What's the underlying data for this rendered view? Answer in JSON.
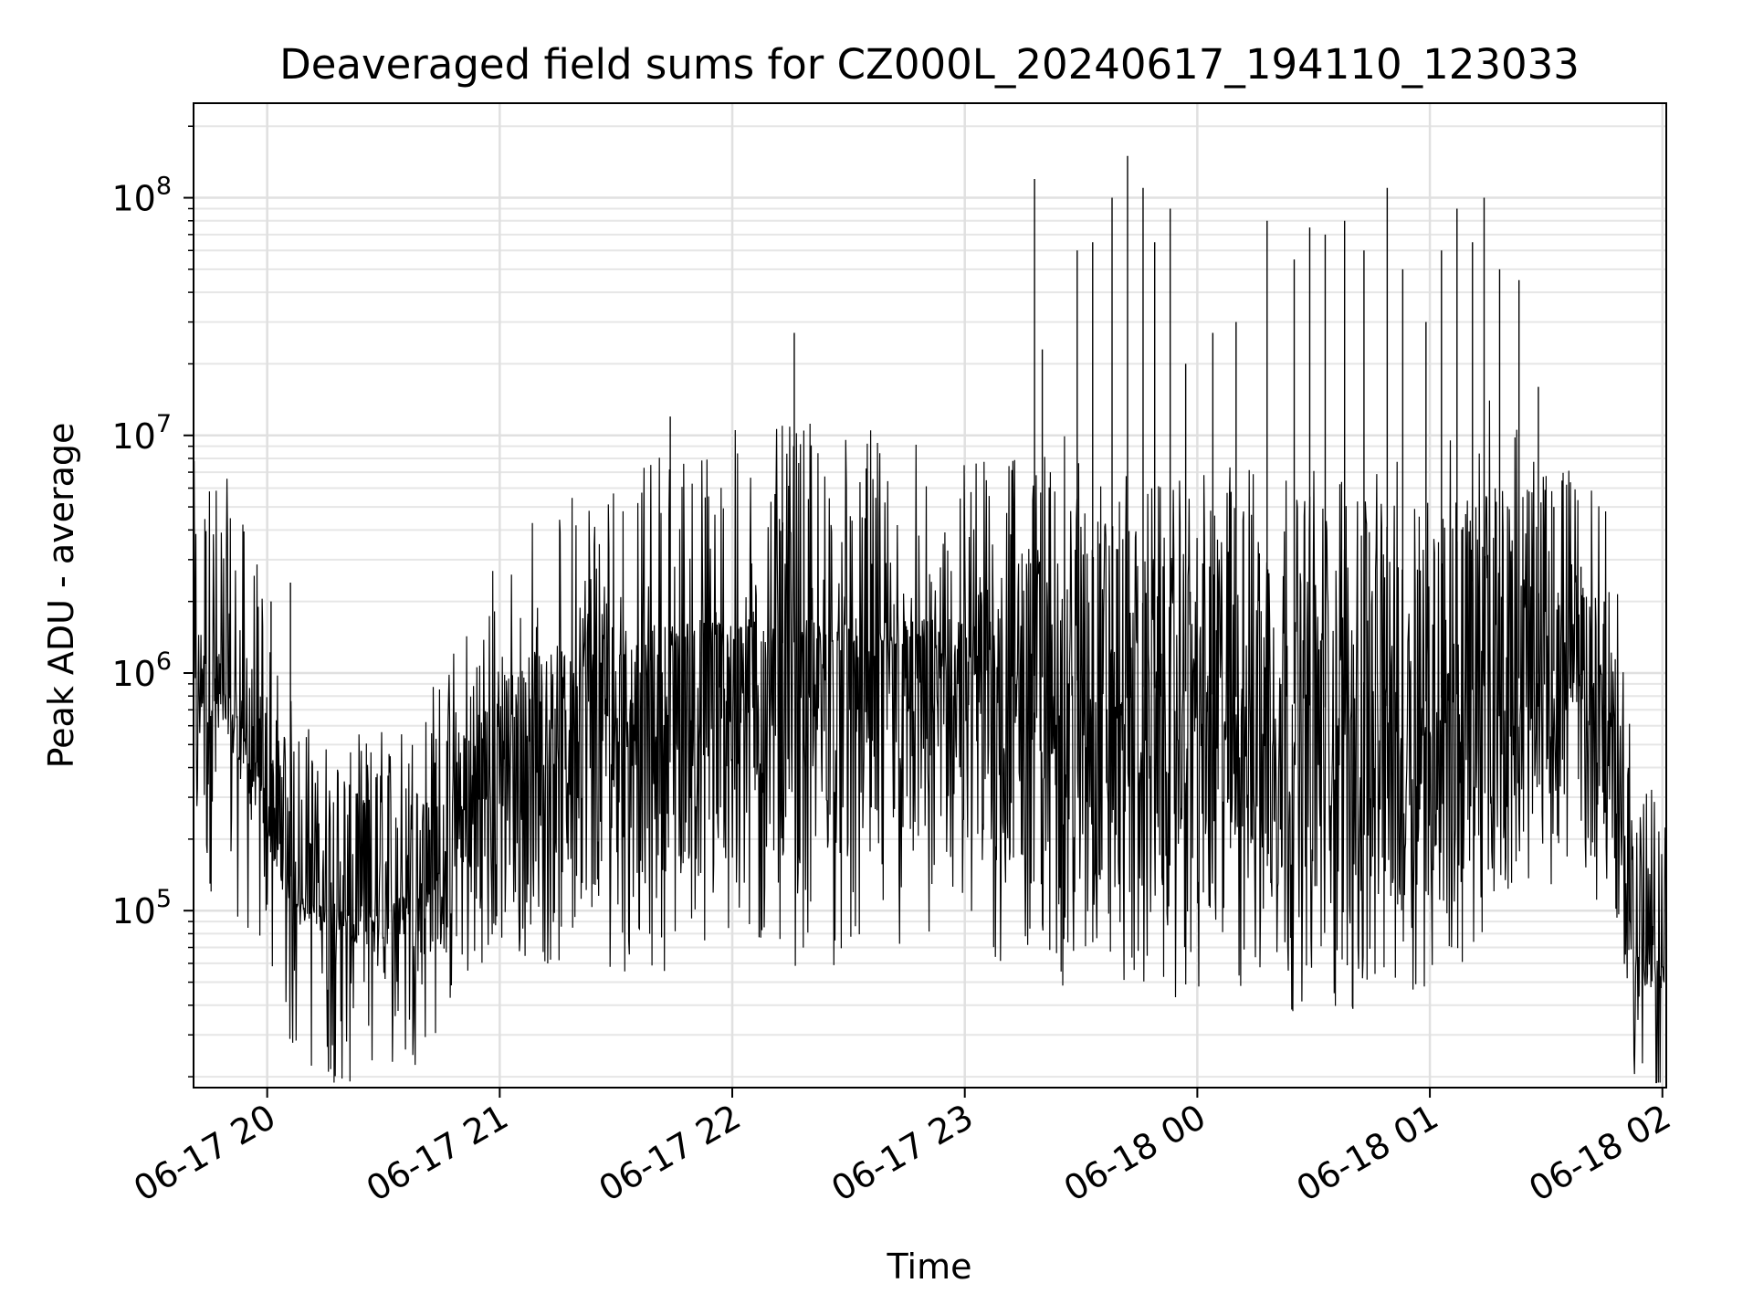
{
  "chart_data": {
    "type": "line",
    "title": "Deaveraged field sums for CZ000L_20240617_194110_123033",
    "xlabel": "Time",
    "ylabel": "Peak ADU - average",
    "x_ticks": [
      "06-17 20",
      "06-17 21",
      "06-17 22",
      "06-17 23",
      "06-18 00",
      "06-18 01",
      "06-18 02"
    ],
    "xlim": [
      "2024-06-17 19:41",
      "2024-06-18 02:01"
    ],
    "y_scale": "log",
    "ylim": [
      18000,
      250000000
    ],
    "y_ticks": [
      {
        "base": "10",
        "exp": "5",
        "value": 100000
      },
      {
        "base": "10",
        "exp": "6",
        "value": 1000000
      },
      {
        "base": "10",
        "exp": "7",
        "value": 10000000
      },
      {
        "base": "10",
        "exp": "8",
        "value": 100000000
      }
    ],
    "grid": true,
    "line_color": "#000000",
    "series": [
      {
        "x": [
          "2024-06-17 19:41",
          "2024-06-17 19:44",
          "2024-06-17 19:47",
          "2024-06-17 19:50",
          "2024-06-17 19:53",
          "2024-06-17 19:56",
          "2024-06-17 19:59",
          "2024-06-17 20:02",
          "2024-06-17 20:05",
          "2024-06-17 20:08",
          "2024-06-17 20:11",
          "2024-06-17 20:14",
          "2024-06-17 20:17",
          "2024-06-17 20:20",
          "2024-06-17 20:23",
          "2024-06-17 20:26",
          "2024-06-17 20:29",
          "2024-06-17 20:32",
          "2024-06-17 20:35",
          "2024-06-17 20:38",
          "2024-06-17 20:41",
          "2024-06-17 20:44",
          "2024-06-17 20:47",
          "2024-06-17 20:50",
          "2024-06-17 20:53",
          "2024-06-17 20:56",
          "2024-06-17 20:59",
          "2024-06-17 21:02",
          "2024-06-17 21:05",
          "2024-06-17 21:08",
          "2024-06-17 21:11",
          "2024-06-17 21:14",
          "2024-06-17 21:17",
          "2024-06-17 21:20",
          "2024-06-17 21:23",
          "2024-06-17 21:26",
          "2024-06-17 21:29",
          "2024-06-17 21:32",
          "2024-06-17 21:35",
          "2024-06-17 21:38",
          "2024-06-17 21:41",
          "2024-06-17 21:44",
          "2024-06-17 21:47",
          "2024-06-17 21:50",
          "2024-06-17 21:53",
          "2024-06-17 21:56",
          "2024-06-17 21:59",
          "2024-06-17 22:02",
          "2024-06-17 22:05",
          "2024-06-17 22:08",
          "2024-06-17 22:11",
          "2024-06-17 22:14",
          "2024-06-17 22:17",
          "2024-06-17 22:20",
          "2024-06-17 22:23",
          "2024-06-17 22:26",
          "2024-06-17 22:29",
          "2024-06-17 22:32",
          "2024-06-17 22:35",
          "2024-06-17 22:38",
          "2024-06-17 22:41",
          "2024-06-17 22:44",
          "2024-06-17 22:47",
          "2024-06-17 22:50",
          "2024-06-17 22:53",
          "2024-06-17 22:56",
          "2024-06-17 22:59",
          "2024-06-17 23:02",
          "2024-06-17 23:05",
          "2024-06-17 23:08",
          "2024-06-17 23:11",
          "2024-06-17 23:14",
          "2024-06-17 23:17",
          "2024-06-17 23:20",
          "2024-06-17 23:23",
          "2024-06-17 23:26",
          "2024-06-17 23:29",
          "2024-06-17 23:32",
          "2024-06-17 23:35",
          "2024-06-17 23:38",
          "2024-06-17 23:41",
          "2024-06-17 23:44",
          "2024-06-17 23:47",
          "2024-06-17 23:50",
          "2024-06-17 23:53",
          "2024-06-17 23:56",
          "2024-06-17 23:59",
          "2024-06-18 00:02",
          "2024-06-18 00:05",
          "2024-06-18 00:08",
          "2024-06-18 00:11",
          "2024-06-18 00:14",
          "2024-06-18 00:17",
          "2024-06-18 00:20",
          "2024-06-18 00:23",
          "2024-06-18 00:26",
          "2024-06-18 00:29",
          "2024-06-18 00:32",
          "2024-06-18 00:35",
          "2024-06-18 00:38",
          "2024-06-18 00:41",
          "2024-06-18 00:44",
          "2024-06-18 00:47",
          "2024-06-18 00:50",
          "2024-06-18 00:53",
          "2024-06-18 00:56",
          "2024-06-18 00:59",
          "2024-06-18 01:02",
          "2024-06-18 01:05",
          "2024-06-18 01:08",
          "2024-06-18 01:11",
          "2024-06-18 01:14",
          "2024-06-18 01:17",
          "2024-06-18 01:20",
          "2024-06-18 01:23",
          "2024-06-18 01:26",
          "2024-06-18 01:29",
          "2024-06-18 01:32",
          "2024-06-18 01:35",
          "2024-06-18 01:38",
          "2024-06-18 01:41",
          "2024-06-18 01:44",
          "2024-06-18 01:47",
          "2024-06-18 01:50",
          "2024-06-18 01:53",
          "2024-06-18 01:56",
          "2024-06-18 01:59",
          "2024-06-18 02:01"
        ],
        "low": [
          700000,
          650000,
          600000,
          550000,
          400000,
          300000,
          220000,
          150000,
          110000,
          100000,
          90000,
          80000,
          75000,
          70000,
          70000,
          72000,
          75000,
          70000,
          68000,
          66000,
          65000,
          64000,
          63000,
          62000,
          61000,
          60000,
          60000,
          59000,
          58000,
          58000,
          58000,
          57000,
          57000,
          56000,
          56000,
          56000,
          55000,
          55000,
          55000,
          55000,
          55000,
          56000,
          56000,
          57000,
          57000,
          57000,
          58000,
          58000,
          58000,
          58000,
          58000,
          58000,
          58000,
          57000,
          57000,
          57000,
          56000,
          56000,
          56000,
          56000,
          55000,
          55000,
          55000,
          55000,
          55000,
          55000,
          55000,
          54000,
          53000,
          52000,
          51000,
          50000,
          48000,
          47000,
          46000,
          46000,
          46000,
          46000,
          45000,
          45000,
          45000,
          44000,
          44000,
          43000,
          43000,
          42000,
          42000,
          41000,
          41000,
          40000,
          40000,
          39000,
          39000,
          38000,
          38000,
          37000,
          37000,
          36000,
          36000,
          35000,
          35000,
          36000,
          38000,
          40000,
          42000,
          45000,
          48000,
          50000,
          52000,
          55000,
          60000,
          70000,
          90000,
          120000,
          150000,
          200000,
          250000,
          300000,
          330000,
          350000,
          330000,
          250000,
          120000,
          60000,
          50000,
          45000,
          45000,
          42000
        ],
        "mid": [
          1000000,
          950000,
          900000,
          850000,
          650000,
          500000,
          350000,
          220000,
          150000,
          120000,
          115000,
          110000,
          105000,
          100000,
          100000,
          105000,
          110000,
          115000,
          120000,
          130000,
          150000,
          180000,
          220000,
          270000,
          330000,
          400000,
          460000,
          520000,
          580000,
          640000,
          700000,
          750000,
          800000,
          850000,
          900000,
          950000,
          1000000,
          1050000,
          1100000,
          1120000,
          1150000,
          1180000,
          1200000,
          1220000,
          1240000,
          1260000,
          1280000,
          1300000,
          1310000,
          1320000,
          1330000,
          1340000,
          1350000,
          1350000,
          1350000,
          1340000,
          1330000,
          1320000,
          1300000,
          1280000,
          1260000,
          1250000,
          1230000,
          1200000,
          1180000,
          1150000,
          1120000,
          1100000,
          1080000,
          1050000,
          1030000,
          1000000,
          980000,
          960000,
          950000,
          940000,
          930000,
          920000,
          910000,
          900000,
          890000,
          880000,
          870000,
          860000,
          850000,
          840000,
          830000,
          820000,
          810000,
          800000,
          790000,
          780000,
          770000,
          760000,
          750000,
          740000,
          730000,
          720000,
          710000,
          700000,
          700000,
          710000,
          720000,
          730000,
          740000,
          750000,
          760000,
          780000,
          800000,
          820000,
          850000,
          880000,
          900000,
          920000,
          950000,
          980000,
          1000000,
          1020000,
          1050000,
          1000000,
          950000,
          800000,
          500000,
          200000,
          90000,
          65000,
          60000,
          55000
        ],
        "high": [
          1600000,
          1500000,
          1400000,
          1300000,
          1200000,
          1100000,
          1000000,
          900000,
          700000,
          500000,
          420000,
          400000,
          420000,
          450000,
          480000,
          520000,
          560000,
          600000,
          650000,
          700000,
          750000,
          800000,
          850000,
          900000,
          950000,
          1000000,
          1050000,
          1100000,
          1150000,
          1200000,
          1250000,
          1300000,
          1350000,
          1400000,
          1450000,
          1500000,
          1550000,
          1580000,
          1600000,
          1620000,
          1640000,
          1660000,
          1680000,
          1700000,
          1700000,
          1700000,
          1700000,
          1700000,
          1700000,
          1700000,
          1700000,
          1700000,
          1700000,
          1700000,
          1700000,
          1700000,
          1700000,
          1700000,
          1700000,
          1700000,
          1700000,
          1700000,
          1700000,
          1700000,
          1700000,
          1700000,
          1700000,
          1800000,
          4000000,
          7000000,
          9000000,
          10000000,
          10000000,
          10000000,
          10000000,
          10000000,
          10000000,
          9000000,
          7000000,
          5000000,
          4000000,
          3500000,
          3000000,
          3500000,
          4000000,
          5000000,
          6000000,
          7000000,
          7500000,
          8000000,
          8000000,
          8000000,
          8000000,
          8000000,
          8000000,
          8000000,
          8000000,
          8000000,
          8000000,
          8000000,
          8000000,
          8000000,
          8000000,
          8000000,
          8000000,
          8000000,
          9000000,
          10000000,
          11000000,
          12000000,
          13000000,
          14000000,
          15000000,
          14000000,
          12000000,
          10000000,
          8000000,
          6000000,
          4000000,
          3000000,
          2500000,
          2000000,
          1500000,
          900000,
          400000,
          100000,
          80000,
          70000
        ],
        "spikes": [
          {
            "x": "2024-06-17 21:44",
            "y": 12000000
          },
          {
            "x": "2024-06-17 22:13",
            "y": 4300000
          },
          {
            "x": "2024-06-17 22:16",
            "y": 27000000
          },
          {
            "x": "2024-06-17 21:39",
            "y": 2200000
          },
          {
            "x": "2024-06-17 20:01",
            "y": 2000000
          },
          {
            "x": "2024-06-17 20:06",
            "y": 2400000
          },
          {
            "x": "2024-06-17 23:18",
            "y": 120000000
          },
          {
            "x": "2024-06-17 23:20",
            "y": 23000000
          },
          {
            "x": "2024-06-17 23:29",
            "y": 60000000
          },
          {
            "x": "2024-06-17 23:33",
            "y": 65000000
          },
          {
            "x": "2024-06-17 23:38",
            "y": 100000000
          },
          {
            "x": "2024-06-17 23:42",
            "y": 150000000
          },
          {
            "x": "2024-06-17 23:46",
            "y": 110000000
          },
          {
            "x": "2024-06-17 23:49",
            "y": 65000000
          },
          {
            "x": "2024-06-17 23:53",
            "y": 90000000
          },
          {
            "x": "2024-06-17 23:57",
            "y": 20000000
          },
          {
            "x": "2024-06-18 00:04",
            "y": 27000000
          },
          {
            "x": "2024-06-18 00:10",
            "y": 30000000
          },
          {
            "x": "2024-06-18 00:18",
            "y": 80000000
          },
          {
            "x": "2024-06-18 00:25",
            "y": 55000000
          },
          {
            "x": "2024-06-18 00:29",
            "y": 75000000
          },
          {
            "x": "2024-06-18 00:33",
            "y": 70000000
          },
          {
            "x": "2024-06-18 00:38",
            "y": 80000000
          },
          {
            "x": "2024-06-18 00:43",
            "y": 60000000
          },
          {
            "x": "2024-06-18 00:49",
            "y": 110000000
          },
          {
            "x": "2024-06-18 00:53",
            "y": 50000000
          },
          {
            "x": "2024-06-18 00:59",
            "y": 30000000
          },
          {
            "x": "2024-06-18 01:03",
            "y": 60000000
          },
          {
            "x": "2024-06-18 01:07",
            "y": 90000000
          },
          {
            "x": "2024-06-18 01:11",
            "y": 65000000
          },
          {
            "x": "2024-06-18 01:14",
            "y": 100000000
          },
          {
            "x": "2024-06-18 01:18",
            "y": 50000000
          },
          {
            "x": "2024-06-18 01:23",
            "y": 45000000
          },
          {
            "x": "2024-06-18 01:28",
            "y": 16000000
          },
          {
            "x": "2024-06-18 01:32",
            "y": 5000000
          },
          {
            "x": "2024-06-18 01:39",
            "y": 2800000
          },
          {
            "x": "2024-06-18 01:45",
            "y": 2000000
          }
        ]
      }
    ]
  }
}
